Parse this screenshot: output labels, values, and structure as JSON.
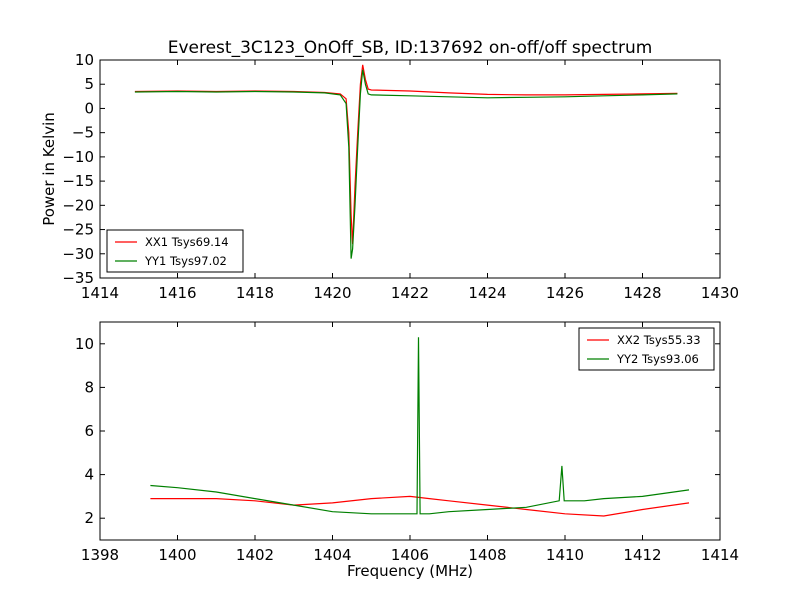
{
  "figure": {
    "title": "Everest_3C123_OnOff_SB, ID:137692 on-off/off spectrum"
  },
  "chart_data": [
    {
      "type": "line",
      "title": "Everest_3C123_OnOff_SB, ID:137692 on-off/off spectrum",
      "xlabel": "",
      "ylabel": "Power in Kelvin",
      "xlim": [
        1414,
        1430
      ],
      "ylim": [
        -35,
        10
      ],
      "xticks": [
        1414,
        1416,
        1418,
        1420,
        1422,
        1424,
        1426,
        1428,
        1430
      ],
      "yticks": [
        -35,
        -30,
        -25,
        -20,
        -15,
        -10,
        -5,
        0,
        5,
        10
      ],
      "grid": false,
      "legend_position": "lower-left",
      "series": [
        {
          "name": "XX1 Tsys69.14",
          "color": "#ff0000",
          "x": [
            1414.9,
            1416.0,
            1417.0,
            1418.0,
            1419.0,
            1419.8,
            1420.2,
            1420.35,
            1420.42,
            1420.48,
            1420.52,
            1420.58,
            1420.65,
            1420.72,
            1420.78,
            1420.85,
            1420.92,
            1421.0,
            1422.0,
            1423.0,
            1424.0,
            1425.0,
            1426.0,
            1427.0,
            1428.0,
            1428.9
          ],
          "y": [
            3.5,
            3.6,
            3.5,
            3.6,
            3.5,
            3.3,
            3.0,
            2.0,
            -5.0,
            -22.0,
            -28.0,
            -16.0,
            -5.0,
            5.0,
            9.0,
            6.0,
            4.0,
            3.8,
            3.6,
            3.2,
            2.9,
            2.8,
            2.8,
            2.9,
            3.0,
            3.1
          ]
        },
        {
          "name": "YY1 Tsys97.02",
          "color": "#008000",
          "x": [
            1414.9,
            1416.0,
            1417.0,
            1418.0,
            1419.0,
            1419.8,
            1420.2,
            1420.35,
            1420.42,
            1420.48,
            1420.52,
            1420.58,
            1420.65,
            1420.72,
            1420.78,
            1420.85,
            1420.92,
            1421.0,
            1422.0,
            1423.0,
            1424.0,
            1425.0,
            1426.0,
            1427.0,
            1428.0,
            1428.9
          ],
          "y": [
            3.4,
            3.5,
            3.4,
            3.5,
            3.4,
            3.2,
            2.8,
            1.0,
            -8.0,
            -31.0,
            -29.0,
            -20.0,
            -8.0,
            3.0,
            8.0,
            5.0,
            3.0,
            2.8,
            2.6,
            2.4,
            2.2,
            2.3,
            2.4,
            2.6,
            2.8,
            3.0
          ]
        }
      ]
    },
    {
      "type": "line",
      "title": "",
      "xlabel": "Frequency (MHz)",
      "ylabel": "",
      "xlim": [
        1398,
        1414
      ],
      "ylim": [
        1,
        11
      ],
      "xticks": [
        1398,
        1400,
        1402,
        1404,
        1406,
        1408,
        1410,
        1412,
        1414
      ],
      "yticks": [
        2,
        4,
        6,
        8,
        10
      ],
      "grid": false,
      "legend_position": "top-right",
      "series": [
        {
          "name": "XX2 Tsys55.33",
          "color": "#ff0000",
          "x": [
            1399.3,
            1400.0,
            1401.0,
            1402.0,
            1403.0,
            1404.0,
            1405.0,
            1406.0,
            1406.5,
            1407.0,
            1408.0,
            1409.0,
            1410.0,
            1411.0,
            1412.0,
            1413.2
          ],
          "y": [
            2.9,
            2.9,
            2.9,
            2.8,
            2.6,
            2.7,
            2.9,
            3.0,
            2.9,
            2.8,
            2.6,
            2.4,
            2.2,
            2.1,
            2.4,
            2.7
          ]
        },
        {
          "name": "YY2 Tsys93.06",
          "color": "#008000",
          "x": [
            1399.3,
            1400.0,
            1401.0,
            1402.0,
            1403.0,
            1404.0,
            1405.0,
            1406.0,
            1406.18,
            1406.22,
            1406.26,
            1406.5,
            1407.0,
            1408.0,
            1409.0,
            1409.85,
            1409.92,
            1409.98,
            1410.5,
            1411.0,
            1412.0,
            1413.2
          ],
          "y": [
            3.5,
            3.4,
            3.2,
            2.9,
            2.6,
            2.3,
            2.2,
            2.2,
            2.2,
            10.3,
            2.2,
            2.2,
            2.3,
            2.4,
            2.5,
            2.8,
            4.4,
            2.8,
            2.8,
            2.9,
            3.0,
            3.3
          ]
        }
      ]
    }
  ]
}
